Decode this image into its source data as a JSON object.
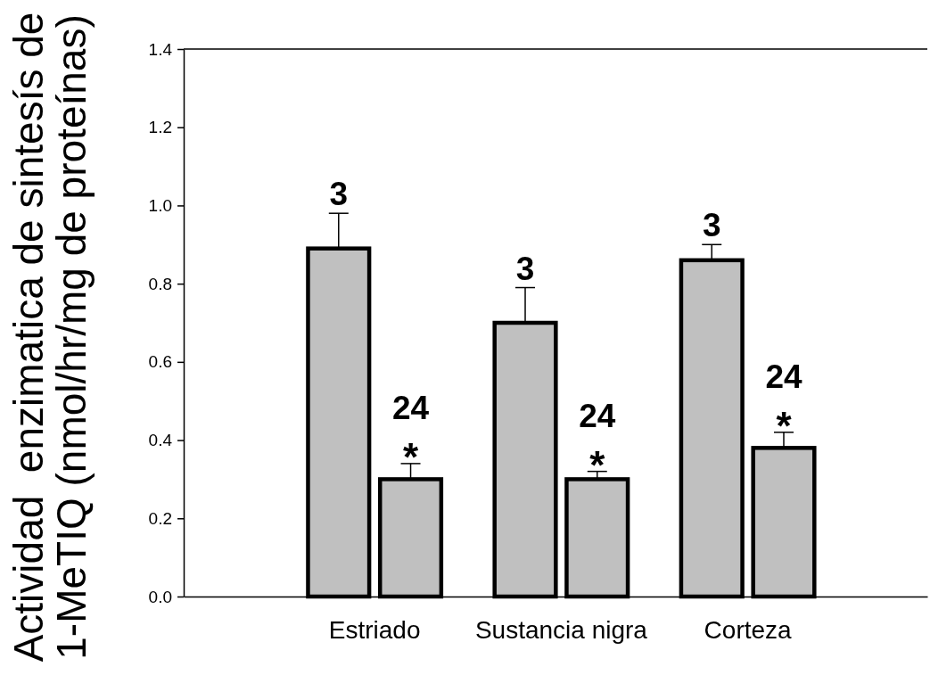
{
  "chart_data": {
    "type": "bar",
    "ylabel": "Actividad  enzimatica de sintesís de\n1-MeTIQ (nmol/hr/mg de proteínas)",
    "categories": [
      "Estriado",
      "Sustancia nigra",
      "Corteza"
    ],
    "series": [
      {
        "name": "3",
        "color": "#c0c0c0",
        "values": [
          0.89,
          0.7,
          0.86
        ],
        "errors": [
          0.09,
          0.09,
          0.04
        ]
      },
      {
        "name": "24",
        "color": "#c0c0c0",
        "values": [
          0.3,
          0.3,
          0.38
        ],
        "errors": [
          0.04,
          0.02,
          0.04
        ],
        "value_labels": [
          "*",
          "*",
          "*"
        ]
      }
    ],
    "ylim": [
      0,
      1.4
    ],
    "yticks": [
      {
        "value": 0,
        "label": "0.0"
      },
      0.2,
      0.4,
      0.6,
      0.8,
      {
        "value": 1,
        "label": "1.0"
      },
      1.2,
      1.4
    ]
  }
}
